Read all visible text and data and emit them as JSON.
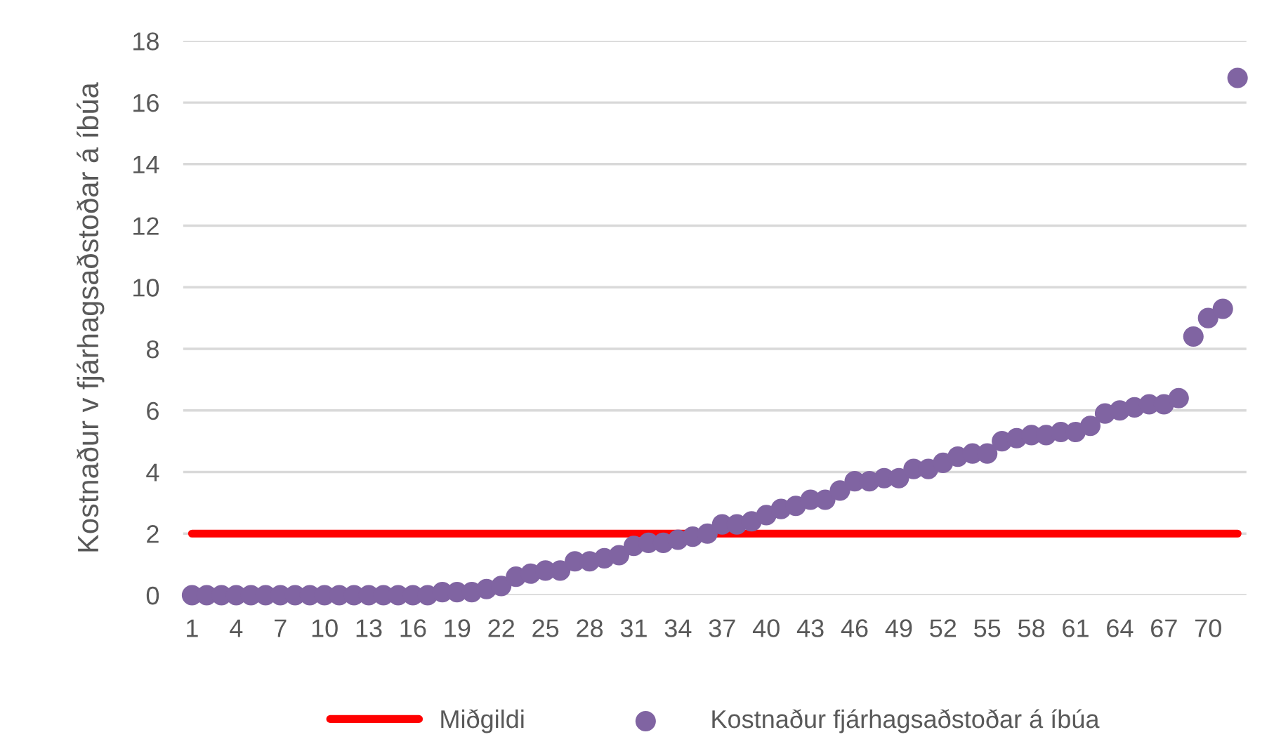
{
  "chart_data": {
    "type": "scatter",
    "ylabel": "Kostnaður v fjárhagsaðstoðar á íbúa",
    "categories": [
      "1",
      null,
      null,
      "4",
      null,
      null,
      "7",
      null,
      null,
      "10",
      null,
      null,
      "13",
      null,
      null,
      "16",
      null,
      null,
      "19",
      null,
      null,
      "22",
      null,
      null,
      "25",
      null,
      null,
      "28",
      null,
      null,
      "31",
      null,
      null,
      "34",
      null,
      null,
      "37",
      null,
      null,
      "40",
      null,
      null,
      "43",
      null,
      null,
      "46",
      null,
      null,
      "49",
      null,
      null,
      "52",
      null,
      null,
      "55",
      null,
      null,
      "58",
      null,
      null,
      "61",
      null,
      null,
      "64",
      null,
      null,
      "67",
      null,
      null,
      "70",
      null,
      null
    ],
    "series": [
      {
        "name": "Miðgildi",
        "type": "line",
        "color": "#ff0000",
        "marker": "none",
        "values": [
          2,
          2,
          2,
          2,
          2,
          2,
          2,
          2,
          2,
          2,
          2,
          2,
          2,
          2,
          2,
          2,
          2,
          2,
          2,
          2,
          2,
          2,
          2,
          2,
          2,
          2,
          2,
          2,
          2,
          2,
          2,
          2,
          2,
          2,
          2,
          2,
          2,
          2,
          2,
          2,
          2,
          2,
          2,
          2,
          2,
          2,
          2,
          2,
          2,
          2,
          2,
          2,
          2,
          2,
          2,
          2,
          2,
          2,
          2,
          2,
          2,
          2,
          2,
          2,
          2,
          2,
          2,
          2,
          2,
          2,
          2,
          2
        ]
      },
      {
        "name": "Kostnaður fjárhagsaðstoðar á íbúa",
        "color": "#8064a2",
        "marker": "circle",
        "values": [
          0,
          0,
          0,
          0,
          0,
          0,
          0,
          0,
          0,
          0,
          0,
          0,
          0,
          0,
          0,
          0,
          0,
          0.1,
          0.1,
          0.1,
          0.2,
          0.3,
          0.6,
          0.7,
          0.8,
          0.8,
          1.1,
          1.1,
          1.2,
          1.3,
          1.6,
          1.7,
          1.7,
          1.8,
          1.9,
          2.0,
          2.3,
          2.3,
          2.4,
          2.6,
          2.8,
          2.9,
          3.1,
          3.1,
          3.4,
          3.7,
          3.7,
          3.8,
          3.8,
          4.1,
          4.1,
          4.3,
          4.5,
          4.6,
          4.6,
          5.0,
          5.1,
          5.2,
          5.2,
          5.3,
          5.3,
          5.5,
          5.9,
          6.0,
          6.1,
          6.2,
          6.2,
          6.4,
          8.4,
          9.0,
          9.3,
          16.8
        ]
      }
    ],
    "ylim": [
      0,
      18
    ],
    "yticks": [
      0,
      2,
      4,
      6,
      8,
      10,
      12,
      14,
      16,
      18
    ],
    "grid": "y",
    "legend": "bottom"
  }
}
